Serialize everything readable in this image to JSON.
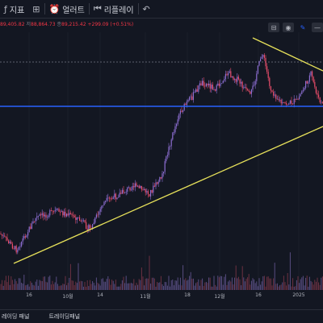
{
  "topbar": {
    "indicators_label": "지표",
    "alert_label": "얼러트",
    "replay_label": "리플레이"
  },
  "ohlc": {
    "open_text": "89,405.82",
    "close_prefix": "저",
    "low_text": "88,864.73",
    "last_prefix": "종",
    "close_text": "89,215.42",
    "change_text": "+299.09 (+0.51%)"
  },
  "xaxis": {
    "ticks": [
      "16",
      "10월",
      "14",
      "11월",
      "18",
      "12월",
      "16",
      "2025"
    ]
  },
  "bottombar": {
    "panel1": "레이딩 패널",
    "panel2": "트레이딩패널"
  },
  "colors": {
    "background": "#131722",
    "trendline": "#e6e05a",
    "support_line": "#2962ff",
    "candle_up": "#8c6ed1",
    "candle_down": "#e94d6a"
  }
}
